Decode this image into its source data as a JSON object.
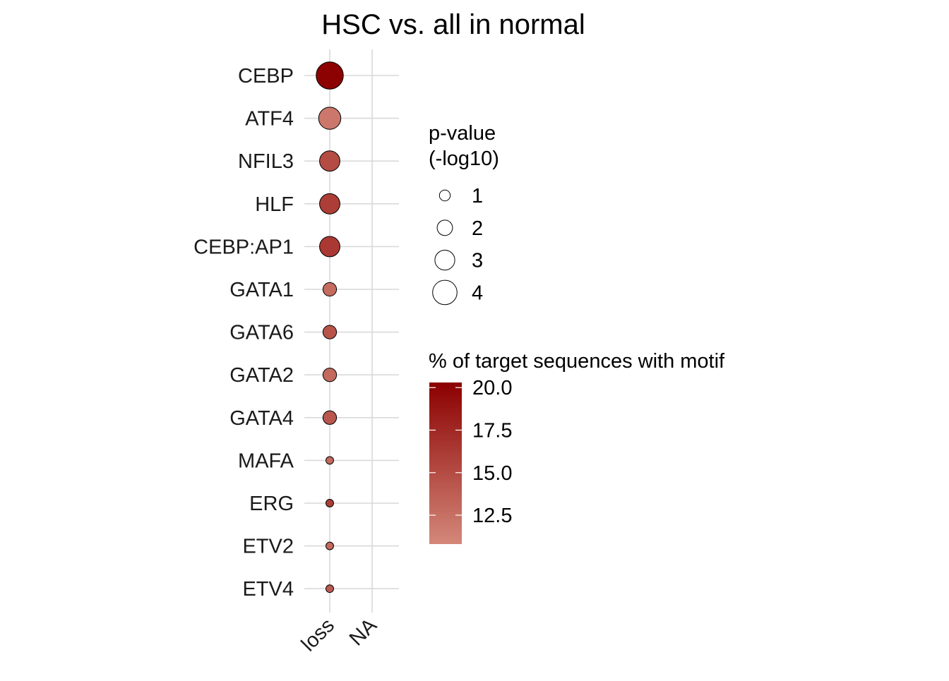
{
  "chart_data": {
    "type": "scatter",
    "title": "HSC vs. all in normal",
    "xlabel": "",
    "ylabel": "",
    "x_categories": [
      "loss",
      "NA"
    ],
    "y_categories": [
      "CEBP",
      "ATF4",
      "NFIL3",
      "HLF",
      "CEBP:AP1",
      "GATA1",
      "GATA6",
      "GATA2",
      "GATA4",
      "MAFA",
      "ERG",
      "ETV2",
      "ETV4"
    ],
    "points": [
      {
        "motif": "CEBP",
        "x": "loss",
        "pvalue_log10": 4.6,
        "pct": 20.2
      },
      {
        "motif": "ATF4",
        "x": "loss",
        "pvalue_log10": 3.5,
        "pct": 12.0
      },
      {
        "motif": "NFIL3",
        "x": "loss",
        "pvalue_log10": 3.1,
        "pct": 15.0
      },
      {
        "motif": "HLF",
        "x": "loss",
        "pvalue_log10": 3.1,
        "pct": 16.0
      },
      {
        "motif": "CEBP:AP1",
        "x": "loss",
        "pvalue_log10": 3.1,
        "pct": 16.3
      },
      {
        "motif": "GATA1",
        "x": "loss",
        "pvalue_log10": 1.6,
        "pct": 12.8
      },
      {
        "motif": "GATA6",
        "x": "loss",
        "pvalue_log10": 1.6,
        "pct": 14.5
      },
      {
        "motif": "GATA2",
        "x": "loss",
        "pvalue_log10": 1.6,
        "pct": 13.0
      },
      {
        "motif": "GATA4",
        "x": "loss",
        "pvalue_log10": 1.6,
        "pct": 14.3
      },
      {
        "motif": "MAFA",
        "x": "loss",
        "pvalue_log10": 0.3,
        "pct": 13.0
      },
      {
        "motif": "ERG",
        "x": "loss",
        "pvalue_log10": 0.3,
        "pct": 16.0
      },
      {
        "motif": "ETV2",
        "x": "loss",
        "pvalue_log10": 0.3,
        "pct": 13.0
      },
      {
        "motif": "ETV4",
        "x": "loss",
        "pvalue_log10": 0.3,
        "pct": 14.0
      }
    ],
    "size_legend": {
      "title_lines": [
        "p-value",
        "(-log10)"
      ],
      "values": [
        1,
        2,
        3,
        4
      ]
    },
    "color_legend": {
      "title": "% of target sequences with motif",
      "min": 10.8,
      "max": 20.3,
      "low_color": "#d4887a",
      "high_color": "#8b0000",
      "ticks": [
        20.0,
        17.5,
        15.0,
        12.5
      ],
      "tick_labels": [
        "20.0",
        "17.5",
        "15.0",
        "12.5"
      ]
    },
    "grid": true,
    "grid_color": "#d9d9d9"
  }
}
